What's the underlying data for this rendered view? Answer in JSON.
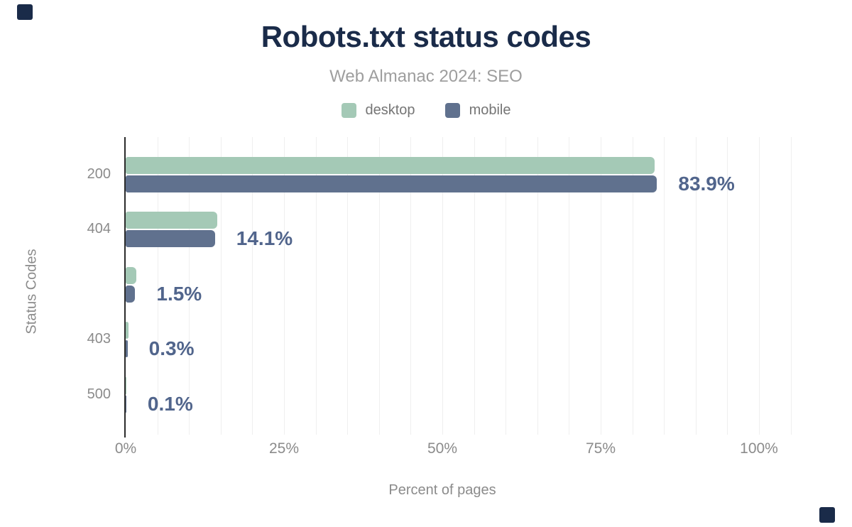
{
  "title": "Robots.txt status codes",
  "subtitle": "Web Almanac 2024: SEO",
  "xlabel": "Percent of pages",
  "ylabel": "Status Codes",
  "chart_data": {
    "type": "bar",
    "orientation": "horizontal",
    "title": "Robots.txt status codes",
    "subtitle": "Web Almanac 2024: SEO",
    "xlabel": "Percent of pages",
    "ylabel": "Status Codes",
    "categories": [
      "200",
      "404",
      "",
      "403",
      "500"
    ],
    "series": [
      {
        "name": "desktop",
        "color": "#a4c9b6",
        "values": [
          83.5,
          14.5,
          1.7,
          0.4,
          0.1
        ]
      },
      {
        "name": "mobile",
        "color": "#60718e",
        "values": [
          83.9,
          14.1,
          1.5,
          0.3,
          0.1
        ]
      }
    ],
    "value_labels": [
      "83.9%",
      "14.1%",
      "1.5%",
      "0.3%",
      "0.1%"
    ],
    "value_labels_follow_series": "mobile",
    "x_ticks": [
      {
        "value": 0,
        "label": "0%"
      },
      {
        "value": 25,
        "label": "25%"
      },
      {
        "value": 50,
        "label": "50%"
      },
      {
        "value": 75,
        "label": "75%"
      },
      {
        "value": 100,
        "label": "100%"
      }
    ],
    "xlim": [
      0,
      105
    ],
    "grid": true,
    "grid_step": 5,
    "legend_position": "top"
  },
  "colors": {
    "background": "#ffffff",
    "title": "#1a2b49",
    "subtitle": "#9e9e9e",
    "legend_text": "#757575",
    "axis_text": "#8b8b8b",
    "value_label": "#51658c",
    "axis_line": "#2b2b2b",
    "gridline": "#efefef",
    "desktop": "#a4c9b6",
    "mobile": "#60718e",
    "corner_square": "#1a2b49"
  }
}
